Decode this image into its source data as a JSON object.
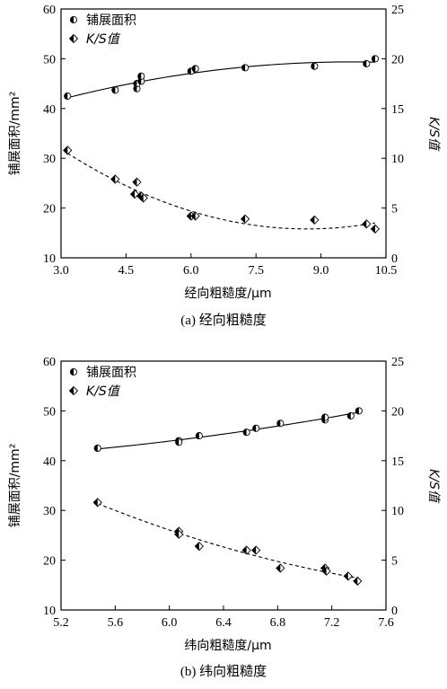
{
  "chart_data": [
    {
      "type": "scatter",
      "caption": "(a) 经向粗糙度",
      "xlabel": "经向粗糙度/μm",
      "ylabel_left": "铺展面积/mm²",
      "ylabel_right": "K/S值",
      "xlim": [
        3.0,
        10.5
      ],
      "ylim_left": [
        10,
        60
      ],
      "ylim_right": [
        0,
        25
      ],
      "xticks": [
        "3.0",
        "4.5",
        "6.0",
        "7.5",
        "9.0",
        "10.5"
      ],
      "yticks_left": [
        "10",
        "20",
        "30",
        "40",
        "50",
        "60"
      ],
      "yticks_right": [
        "0",
        "5",
        "10",
        "15",
        "20",
        "25"
      ],
      "legend": [
        "铺展面积",
        "K/S值"
      ],
      "legend_position": "top-left",
      "series": [
        {
          "name": "铺展面积",
          "axis": "left",
          "marker": "half-filled-circle",
          "fit": "solid",
          "x": [
            3.15,
            4.25,
            4.75,
            4.75,
            4.85,
            4.85,
            6.0,
            6.1,
            7.25,
            8.85,
            10.05,
            10.25
          ],
          "y": [
            42.5,
            43.7,
            44.0,
            45.0,
            45.5,
            46.5,
            47.5,
            48.0,
            48.2,
            48.5,
            49.0,
            50.0
          ]
        },
        {
          "name": "K/S值",
          "axis": "right",
          "marker": "half-filled-diamond",
          "fit": "dashed",
          "x": [
            3.15,
            4.25,
            4.7,
            4.75,
            4.85,
            4.9,
            6.0,
            6.1,
            7.25,
            8.85,
            10.05,
            10.25
          ],
          "y": [
            10.8,
            7.9,
            6.4,
            7.6,
            6.2,
            6.0,
            4.2,
            4.2,
            3.9,
            3.8,
            3.4,
            2.9
          ]
        }
      ]
    },
    {
      "type": "scatter",
      "caption": "(b) 纬向粗糙度",
      "xlabel": "纬向粗糙度/μm",
      "ylabel_left": "铺展面积/mm²",
      "ylabel_right": "K/S值",
      "xlim": [
        5.2,
        7.6
      ],
      "ylim_left": [
        10,
        60
      ],
      "ylim_right": [
        0,
        25
      ],
      "xticks": [
        "5.2",
        "5.6",
        "6.0",
        "6.4",
        "6.8",
        "7.2",
        "7.6"
      ],
      "yticks_left": [
        "10",
        "20",
        "30",
        "40",
        "50",
        "60"
      ],
      "yticks_right": [
        "0",
        "5",
        "10",
        "15",
        "20",
        "25"
      ],
      "legend": [
        "铺展面积",
        "K/S值"
      ],
      "legend_position": "top-left",
      "series": [
        {
          "name": "铺展面积",
          "axis": "left",
          "marker": "half-filled-circle",
          "fit": "solid",
          "x": [
            5.47,
            6.07,
            6.07,
            6.22,
            6.57,
            6.64,
            6.82,
            7.15,
            7.15,
            7.34,
            7.4
          ],
          "y": [
            42.5,
            44.0,
            43.7,
            45.0,
            45.7,
            46.5,
            47.5,
            48.2,
            48.7,
            49.0,
            50.0
          ]
        },
        {
          "name": "K/S值",
          "axis": "right",
          "marker": "half-filled-diamond",
          "fit": "dashed",
          "x": [
            5.47,
            6.07,
            6.07,
            6.22,
            6.57,
            6.64,
            6.82,
            7.15,
            7.16,
            7.32,
            7.39
          ],
          "y": [
            10.8,
            7.9,
            7.6,
            6.4,
            6.0,
            6.0,
            4.2,
            4.2,
            3.9,
            3.4,
            2.9
          ]
        }
      ]
    }
  ]
}
